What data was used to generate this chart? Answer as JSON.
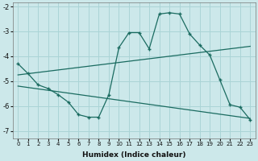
{
  "xlabel": "Humidex (Indice chaleur)",
  "background_color": "#cce8ea",
  "line_color": "#1a6b60",
  "grid_color": "#aad4d6",
  "xlim": [
    -0.5,
    23.5
  ],
  "ylim": [
    -7.3,
    -1.85
  ],
  "yticks": [
    -7,
    -6,
    -5,
    -4,
    -3,
    -2
  ],
  "xticks": [
    0,
    1,
    2,
    3,
    4,
    5,
    6,
    7,
    8,
    9,
    10,
    11,
    12,
    13,
    14,
    15,
    16,
    17,
    18,
    19,
    20,
    21,
    22,
    23
  ],
  "line1_x": [
    0,
    1,
    2,
    3,
    4,
    5,
    6,
    7,
    8,
    9,
    10,
    11,
    12,
    13,
    14,
    15,
    16,
    17,
    18,
    19,
    20,
    21,
    22,
    23
  ],
  "line1_y": [
    -4.3,
    -4.7,
    -5.15,
    -5.3,
    -5.55,
    -5.85,
    -6.35,
    -6.45,
    -6.45,
    -5.55,
    -3.65,
    -3.05,
    -3.05,
    -3.7,
    -2.3,
    -2.25,
    -2.3,
    -3.1,
    -3.55,
    -3.95,
    -4.95,
    -5.95,
    -6.05,
    -6.55
  ],
  "line2_x": [
    0,
    23
  ],
  "line2_y": [
    -4.75,
    -3.6
  ],
  "line3_x": [
    0,
    23
  ],
  "line3_y": [
    -5.2,
    -6.5
  ]
}
